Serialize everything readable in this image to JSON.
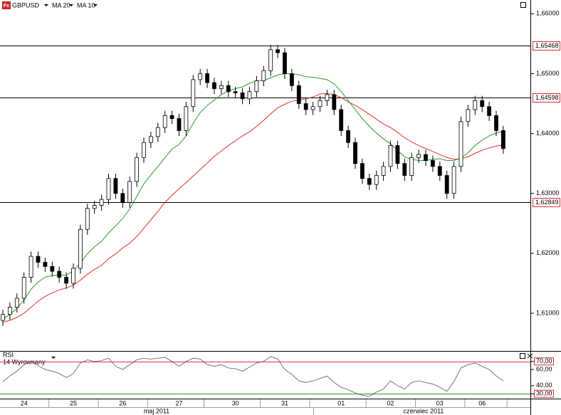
{
  "header": {
    "icon": "Fx"
  },
  "chart_data": [
    {
      "type": "candlestick",
      "title": "GBPUSD",
      "categories": [
        null,
        null,
        null,
        "24",
        null,
        null,
        null,
        null,
        null,
        null,
        "25",
        null,
        null,
        null,
        null,
        null,
        null,
        "26",
        null,
        null,
        null,
        null,
        null,
        null,
        null,
        "27",
        null,
        null,
        null,
        null,
        null,
        null,
        null,
        "30",
        null,
        null,
        null,
        null,
        null,
        null,
        "31",
        null,
        null,
        null,
        null,
        null,
        null,
        null,
        "01",
        null,
        null,
        null,
        null,
        null,
        null,
        "02",
        null,
        null,
        null,
        null,
        null,
        null,
        "03",
        null,
        null,
        null,
        null,
        null,
        "06",
        null,
        null,
        null
      ],
      "months": [
        "maj 2011",
        "czerwiec 2011"
      ],
      "open": [
        1.6088,
        1.6098,
        1.611,
        1.6125,
        1.616,
        1.6195,
        1.6185,
        1.6178,
        1.617,
        1.616,
        1.615,
        1.6175,
        1.624,
        1.6275,
        1.628,
        1.629,
        1.6325,
        1.63,
        1.6285,
        1.632,
        1.636,
        1.6385,
        1.6395,
        1.641,
        1.643,
        1.6425,
        1.6405,
        1.6445,
        1.649,
        1.65,
        1.6485,
        1.6475,
        1.648,
        1.647,
        1.6468,
        1.6458,
        1.647,
        1.6488,
        1.6505,
        1.654,
        1.6535,
        1.65,
        1.648,
        1.645,
        1.644,
        1.6445,
        1.6455,
        1.6465,
        1.644,
        1.6405,
        1.6385,
        1.635,
        1.6325,
        1.6315,
        1.633,
        1.6345,
        1.638,
        1.635,
        1.633,
        1.636,
        1.6365,
        1.6355,
        1.6345,
        1.633,
        1.63,
        1.6345,
        1.642,
        1.644,
        1.6455,
        1.6445,
        1.643,
        1.6405
      ],
      "high": [
        1.6106,
        1.6118,
        1.6133,
        1.6168,
        1.6203,
        1.6203,
        1.6193,
        1.6186,
        1.6178,
        1.6168,
        1.6183,
        1.6248,
        1.6283,
        1.6288,
        1.6298,
        1.6333,
        1.6333,
        1.6308,
        1.6328,
        1.6368,
        1.6393,
        1.6403,
        1.6418,
        1.6438,
        1.6438,
        1.6433,
        1.6453,
        1.6498,
        1.6508,
        1.6508,
        1.6493,
        1.6488,
        1.6488,
        1.6478,
        1.6476,
        1.6478,
        1.6496,
        1.6513,
        1.6548,
        1.6548,
        1.6543,
        1.6508,
        1.6488,
        1.6458,
        1.6453,
        1.6463,
        1.6473,
        1.6473,
        1.6448,
        1.6413,
        1.6393,
        1.6358,
        1.6333,
        1.6338,
        1.6353,
        1.6388,
        1.6388,
        1.6358,
        1.6368,
        1.6373,
        1.6373,
        1.6363,
        1.6353,
        1.6338,
        1.6353,
        1.6428,
        1.6448,
        1.6463,
        1.6463,
        1.6453,
        1.6438,
        1.6413
      ],
      "low": [
        1.6079,
        1.6089,
        1.6101,
        1.6116,
        1.6151,
        1.6176,
        1.6169,
        1.6161,
        1.6151,
        1.6141,
        1.6141,
        1.6166,
        1.6231,
        1.6266,
        1.6271,
        1.6281,
        1.6291,
        1.6276,
        1.6276,
        1.6311,
        1.6351,
        1.6376,
        1.6386,
        1.6401,
        1.6416,
        1.6396,
        1.6396,
        1.6436,
        1.6481,
        1.6476,
        1.6466,
        1.6466,
        1.6461,
        1.6459,
        1.6449,
        1.6449,
        1.6461,
        1.6479,
        1.6496,
        1.6526,
        1.6491,
        1.6471,
        1.6441,
        1.6431,
        1.6431,
        1.6436,
        1.6446,
        1.6431,
        1.6396,
        1.6376,
        1.6341,
        1.6316,
        1.6306,
        1.6306,
        1.6321,
        1.6336,
        1.6341,
        1.6321,
        1.6321,
        1.6351,
        1.6346,
        1.6336,
        1.6321,
        1.6291,
        1.6291,
        1.6336,
        1.6411,
        1.6431,
        1.6436,
        1.6421,
        1.6396,
        1.6366
      ],
      "close": [
        1.6098,
        1.611,
        1.6125,
        1.616,
        1.6195,
        1.6185,
        1.6178,
        1.617,
        1.616,
        1.615,
        1.6175,
        1.624,
        1.6275,
        1.628,
        1.629,
        1.6325,
        1.63,
        1.6285,
        1.632,
        1.636,
        1.6385,
        1.6395,
        1.641,
        1.643,
        1.6425,
        1.6405,
        1.6445,
        1.649,
        1.65,
        1.6485,
        1.6475,
        1.648,
        1.647,
        1.6468,
        1.6458,
        1.647,
        1.6488,
        1.6505,
        1.654,
        1.6535,
        1.65,
        1.648,
        1.645,
        1.644,
        1.6445,
        1.6455,
        1.6465,
        1.644,
        1.6405,
        1.6385,
        1.635,
        1.6325,
        1.6315,
        1.633,
        1.6345,
        1.638,
        1.635,
        1.633,
        1.636,
        1.6365,
        1.6355,
        1.6345,
        1.633,
        1.63,
        1.6345,
        1.642,
        1.644,
        1.6455,
        1.6445,
        1.643,
        1.6405,
        1.6375
      ],
      "series": [
        {
          "name": "MA 20",
          "color": "#e03030",
          "values": [
            1.6085,
            1.6088,
            1.6093,
            1.61,
            1.611,
            1.612,
            1.6128,
            1.6134,
            1.6139,
            1.6142,
            1.6147,
            1.6155,
            1.6165,
            1.6173,
            1.618,
            1.6191,
            1.6199,
            1.6209,
            1.6217,
            1.6228,
            1.6242,
            1.6256,
            1.627,
            1.6285,
            1.6297,
            1.6308,
            1.6318,
            1.6329,
            1.634,
            1.6351,
            1.6362,
            1.6371,
            1.638,
            1.6388,
            1.6396,
            1.6403,
            1.6412,
            1.6422,
            1.6433,
            1.6443,
            1.6449,
            1.6454,
            1.6456,
            1.6458,
            1.6461,
            1.6466,
            1.6467,
            1.6465,
            1.646,
            1.6453,
            1.6447,
            1.644,
            1.6432,
            1.6424,
            1.6416,
            1.641,
            1.6402,
            1.6393,
            1.6386,
            1.638,
            1.6375,
            1.637,
            1.6365,
            1.636,
            1.6357,
            1.6358,
            1.6361,
            1.6367,
            1.6372,
            1.6376,
            1.6379,
            1.6381
          ]
        },
        {
          "name": "MA 10",
          "color": "#2a9a2a",
          "values": [
            1.609,
            1.6098,
            1.6108,
            1.6122,
            1.614,
            1.6152,
            1.616,
            1.6163,
            1.6164,
            1.6163,
            1.6171,
            1.6184,
            1.6199,
            1.6211,
            1.622,
            1.6234,
            1.6246,
            1.6258,
            1.6274,
            1.6295,
            1.6316,
            1.6331,
            1.6345,
            1.636,
            1.6374,
            1.6382,
            1.6396,
            1.6417,
            1.6435,
            1.6447,
            1.6456,
            1.6465,
            1.6471,
            1.6475,
            1.6478,
            1.6484,
            1.6488,
            1.6489,
            1.6493,
            1.6498,
            1.65,
            1.65,
            1.6498,
            1.6495,
            1.6494,
            1.6492,
            1.649,
            1.6483,
            1.647,
            1.6455,
            1.644,
            1.6425,
            1.6412,
            1.6401,
            1.6391,
            1.6383,
            1.6372,
            1.6361,
            1.6357,
            1.6355,
            1.6355,
            1.6357,
            1.6358,
            1.6355,
            1.6355,
            1.6359,
            1.6368,
            1.638,
            1.6389,
            1.6396,
            1.6401,
            1.6404
          ]
        }
      ],
      "ylim": [
        1.6037,
        1.6623
      ],
      "yticks": [
        {
          "value": 1.61,
          "label": "1,61000"
        },
        {
          "value": 1.62,
          "label": "1,62000"
        },
        {
          "value": 1.63,
          "label": "1,63000"
        },
        {
          "value": 1.64,
          "label": "1,64000"
        },
        {
          "value": 1.65,
          "label": "1,65000"
        },
        {
          "value": 1.66,
          "label": "1,66000"
        }
      ],
      "levels": [
        {
          "value": 1.65468,
          "label": "1,65468"
        },
        {
          "value": 1.64598,
          "label": "1,64598"
        },
        {
          "value": 1.62849,
          "label": "1,62849"
        }
      ],
      "level_color": "#e03030"
    },
    {
      "type": "line",
      "title": "RSI",
      "subtitle": "14 Wyrownany",
      "color": "#555555",
      "values": [
        45,
        52,
        58,
        66,
        70,
        65,
        60,
        58,
        55,
        50,
        55,
        68,
        72,
        70,
        71,
        74,
        64,
        60,
        66,
        72,
        74,
        73,
        74,
        75,
        70,
        64,
        70,
        74,
        73,
        66,
        64,
        66,
        62,
        61,
        58,
        63,
        68,
        70,
        76,
        73,
        60,
        54,
        46,
        44,
        46,
        49,
        52,
        44,
        38,
        35,
        31,
        28,
        27,
        32,
        36,
        46,
        40,
        36,
        44,
        46,
        44,
        42,
        38,
        33,
        45,
        62,
        66,
        68,
        64,
        60,
        52,
        46
      ],
      "ylim": [
        24,
        83
      ],
      "yticks": [
        {
          "value": 30,
          "label": "30,00"
        },
        {
          "value": 40,
          "label": "40,00"
        },
        {
          "value": 60,
          "label": "60,00"
        },
        {
          "value": 70,
          "label": "70,00"
        }
      ],
      "level_lines": [
        70,
        30
      ],
      "level_colors": [
        "#e03030",
        "#2a9a2a"
      ]
    }
  ]
}
